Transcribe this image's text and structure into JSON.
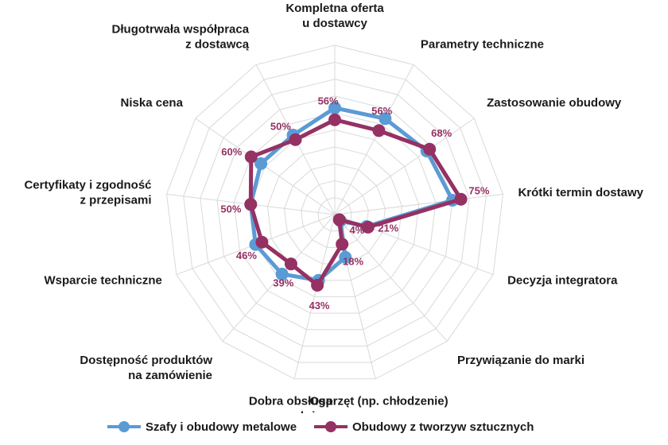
{
  "chart_data": {
    "type": "radar",
    "categories": [
      "Kompletna oferta\nu dostawcy",
      "Parametry techniczne",
      "Zastosowanie obudowy",
      "Krótki termin dostawy",
      "Decyzja integratora",
      "Przywiązanie do marki",
      "Osprzęt (np. chłodzenie)",
      "Dobra obsługa\nposprzedażna",
      "Dostępność produktów\nna zamówienie",
      "Wsparcie techniczne",
      "Certyfikaty i zgodność\nz  przepisami",
      "Niska cena",
      "Długotrwała współpraca\nz dostawcą"
    ],
    "rlim": [
      0,
      100
    ],
    "grid": true,
    "legend_position": "bottom",
    "series": [
      {
        "name": "Szafy i obudowy metalowe",
        "color": "#5b9bd5",
        "values": [
          63,
          64,
          66,
          70,
          20,
          5,
          26,
          40,
          47,
          50,
          50,
          53,
          53
        ],
        "labels": []
      },
      {
        "name": "Obudowy z tworzyw sztucznych",
        "color": "#953163",
        "values": [
          56,
          56,
          68,
          75,
          21,
          4,
          18,
          43,
          39,
          46,
          50,
          60,
          50
        ],
        "labels": [
          "56%",
          "56%",
          "68%",
          "75%",
          "21%",
          "4%",
          "18%",
          "43%",
          "39%",
          "46%",
          "50%",
          "60%",
          "50%"
        ]
      }
    ]
  },
  "legend": {
    "items": [
      {
        "label": "Szafy i obudowy metalowe",
        "color": "#5b9bd5"
      },
      {
        "label": "Obudowy z tworzyw sztucznych",
        "color": "#953163"
      }
    ]
  }
}
